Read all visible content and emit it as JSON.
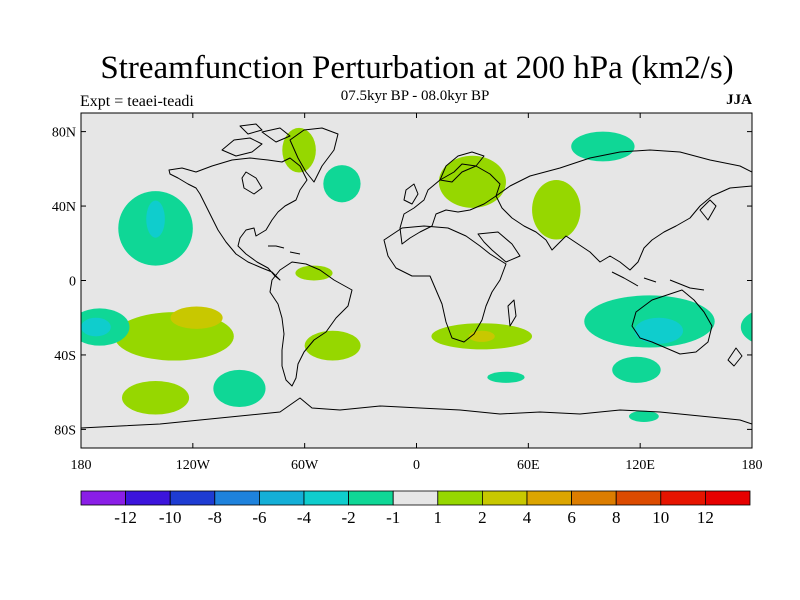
{
  "header": {
    "title": "Streamfunction Perturbation at 200 hPa (km2/s)",
    "subtitle": "07.5kyr BP - 08.0kyr BP",
    "left_label": "Expt = teaei-teadi",
    "right_label": "JJA"
  },
  "axes": {
    "x_ticks": [
      {
        "value": -180,
        "label": "180"
      },
      {
        "value": -120,
        "label": "120W"
      },
      {
        "value": -60,
        "label": "60W"
      },
      {
        "value": 0,
        "label": "0"
      },
      {
        "value": 60,
        "label": "60E"
      },
      {
        "value": 120,
        "label": "120E"
      },
      {
        "value": 180,
        "label": "180"
      }
    ],
    "y_ticks": [
      {
        "value": 80,
        "label": "80N"
      },
      {
        "value": 40,
        "label": "40N"
      },
      {
        "value": 0,
        "label": "0"
      },
      {
        "value": -40,
        "label": "40S"
      },
      {
        "value": -80,
        "label": "80S"
      }
    ],
    "lon_range": [
      -180,
      180
    ],
    "lat_range": [
      -90,
      90
    ]
  },
  "colorbar": {
    "labels": [
      "-12",
      "-10",
      "-8",
      "-6",
      "-4",
      "-2",
      "-1",
      "1",
      "2",
      "4",
      "6",
      "8",
      "10",
      "12"
    ],
    "colors": [
      "#8a1ee6",
      "#3c14dc",
      "#1e3cd2",
      "#1e82dc",
      "#14afd7",
      "#0fcdcd",
      "#0fd796",
      "#e6e6e6",
      "#96d700",
      "#c8c800",
      "#dca500",
      "#dc7d00",
      "#dc4b00",
      "#e61400",
      "#e60000"
    ]
  },
  "colors": {
    "background": "#e6e6e6",
    "coast": "#000000"
  },
  "anomalies": [
    {
      "lon": -130,
      "lat": -30,
      "rlon": 32,
      "rlat": 13,
      "color": "#96d700"
    },
    {
      "lon": -118,
      "lat": -20,
      "rlon": 14,
      "rlat": 6,
      "color": "#c8c800"
    },
    {
      "lon": -170,
      "lat": -25,
      "rlon": 16,
      "rlat": 10,
      "color": "#0fd796"
    },
    {
      "lon": -172,
      "lat": -25,
      "rlon": 8,
      "rlat": 5,
      "color": "#0fcdcd"
    },
    {
      "lon": -140,
      "lat": 28,
      "rlon": 20,
      "rlat": 20,
      "color": "#0fd796"
    },
    {
      "lon": -140,
      "lat": 33,
      "rlon": 5,
      "rlat": 10,
      "color": "#0fcdcd"
    },
    {
      "lon": -140,
      "lat": -63,
      "rlon": 18,
      "rlat": 9,
      "color": "#96d700"
    },
    {
      "lon": -95,
      "lat": -58,
      "rlon": 14,
      "rlat": 10,
      "color": "#0fd796"
    },
    {
      "lon": -45,
      "lat": -35,
      "rlon": 15,
      "rlat": 8,
      "color": "#96d700"
    },
    {
      "lon": -63,
      "lat": 70,
      "rlon": 9,
      "rlat": 12,
      "color": "#96d700"
    },
    {
      "lon": -40,
      "lat": 52,
      "rlon": 10,
      "rlat": 10,
      "color": "#0fd796"
    },
    {
      "lon": -55,
      "lat": 4,
      "rlon": 10,
      "rlat": 4,
      "color": "#96d700"
    },
    {
      "lon": 30,
      "lat": 53,
      "rlon": 18,
      "rlat": 14,
      "color": "#96d700"
    },
    {
      "lon": 35,
      "lat": -30,
      "rlon": 27,
      "rlat": 7,
      "color": "#96d700"
    },
    {
      "lon": 35,
      "lat": -30,
      "rlon": 7,
      "rlat": 3,
      "color": "#c8c800"
    },
    {
      "lon": 48,
      "lat": -52,
      "rlon": 10,
      "rlat": 3,
      "color": "#0fd796"
    },
    {
      "lon": 75,
      "lat": 38,
      "rlon": 13,
      "rlat": 16,
      "color": "#96d700"
    },
    {
      "lon": 100,
      "lat": 72,
      "rlon": 17,
      "rlat": 8,
      "color": "#0fd796"
    },
    {
      "lon": 118,
      "lat": -48,
      "rlon": 13,
      "rlat": 7,
      "color": "#0fd796"
    },
    {
      "lon": 125,
      "lat": -22,
      "rlon": 35,
      "rlat": 14,
      "color": "#0fd796"
    },
    {
      "lon": 130,
      "lat": -27,
      "rlon": 13,
      "rlat": 7,
      "color": "#0fcdcd"
    },
    {
      "lon": 122,
      "lat": -73,
      "rlon": 8,
      "rlat": 3,
      "color": "#0fd796"
    }
  ]
}
